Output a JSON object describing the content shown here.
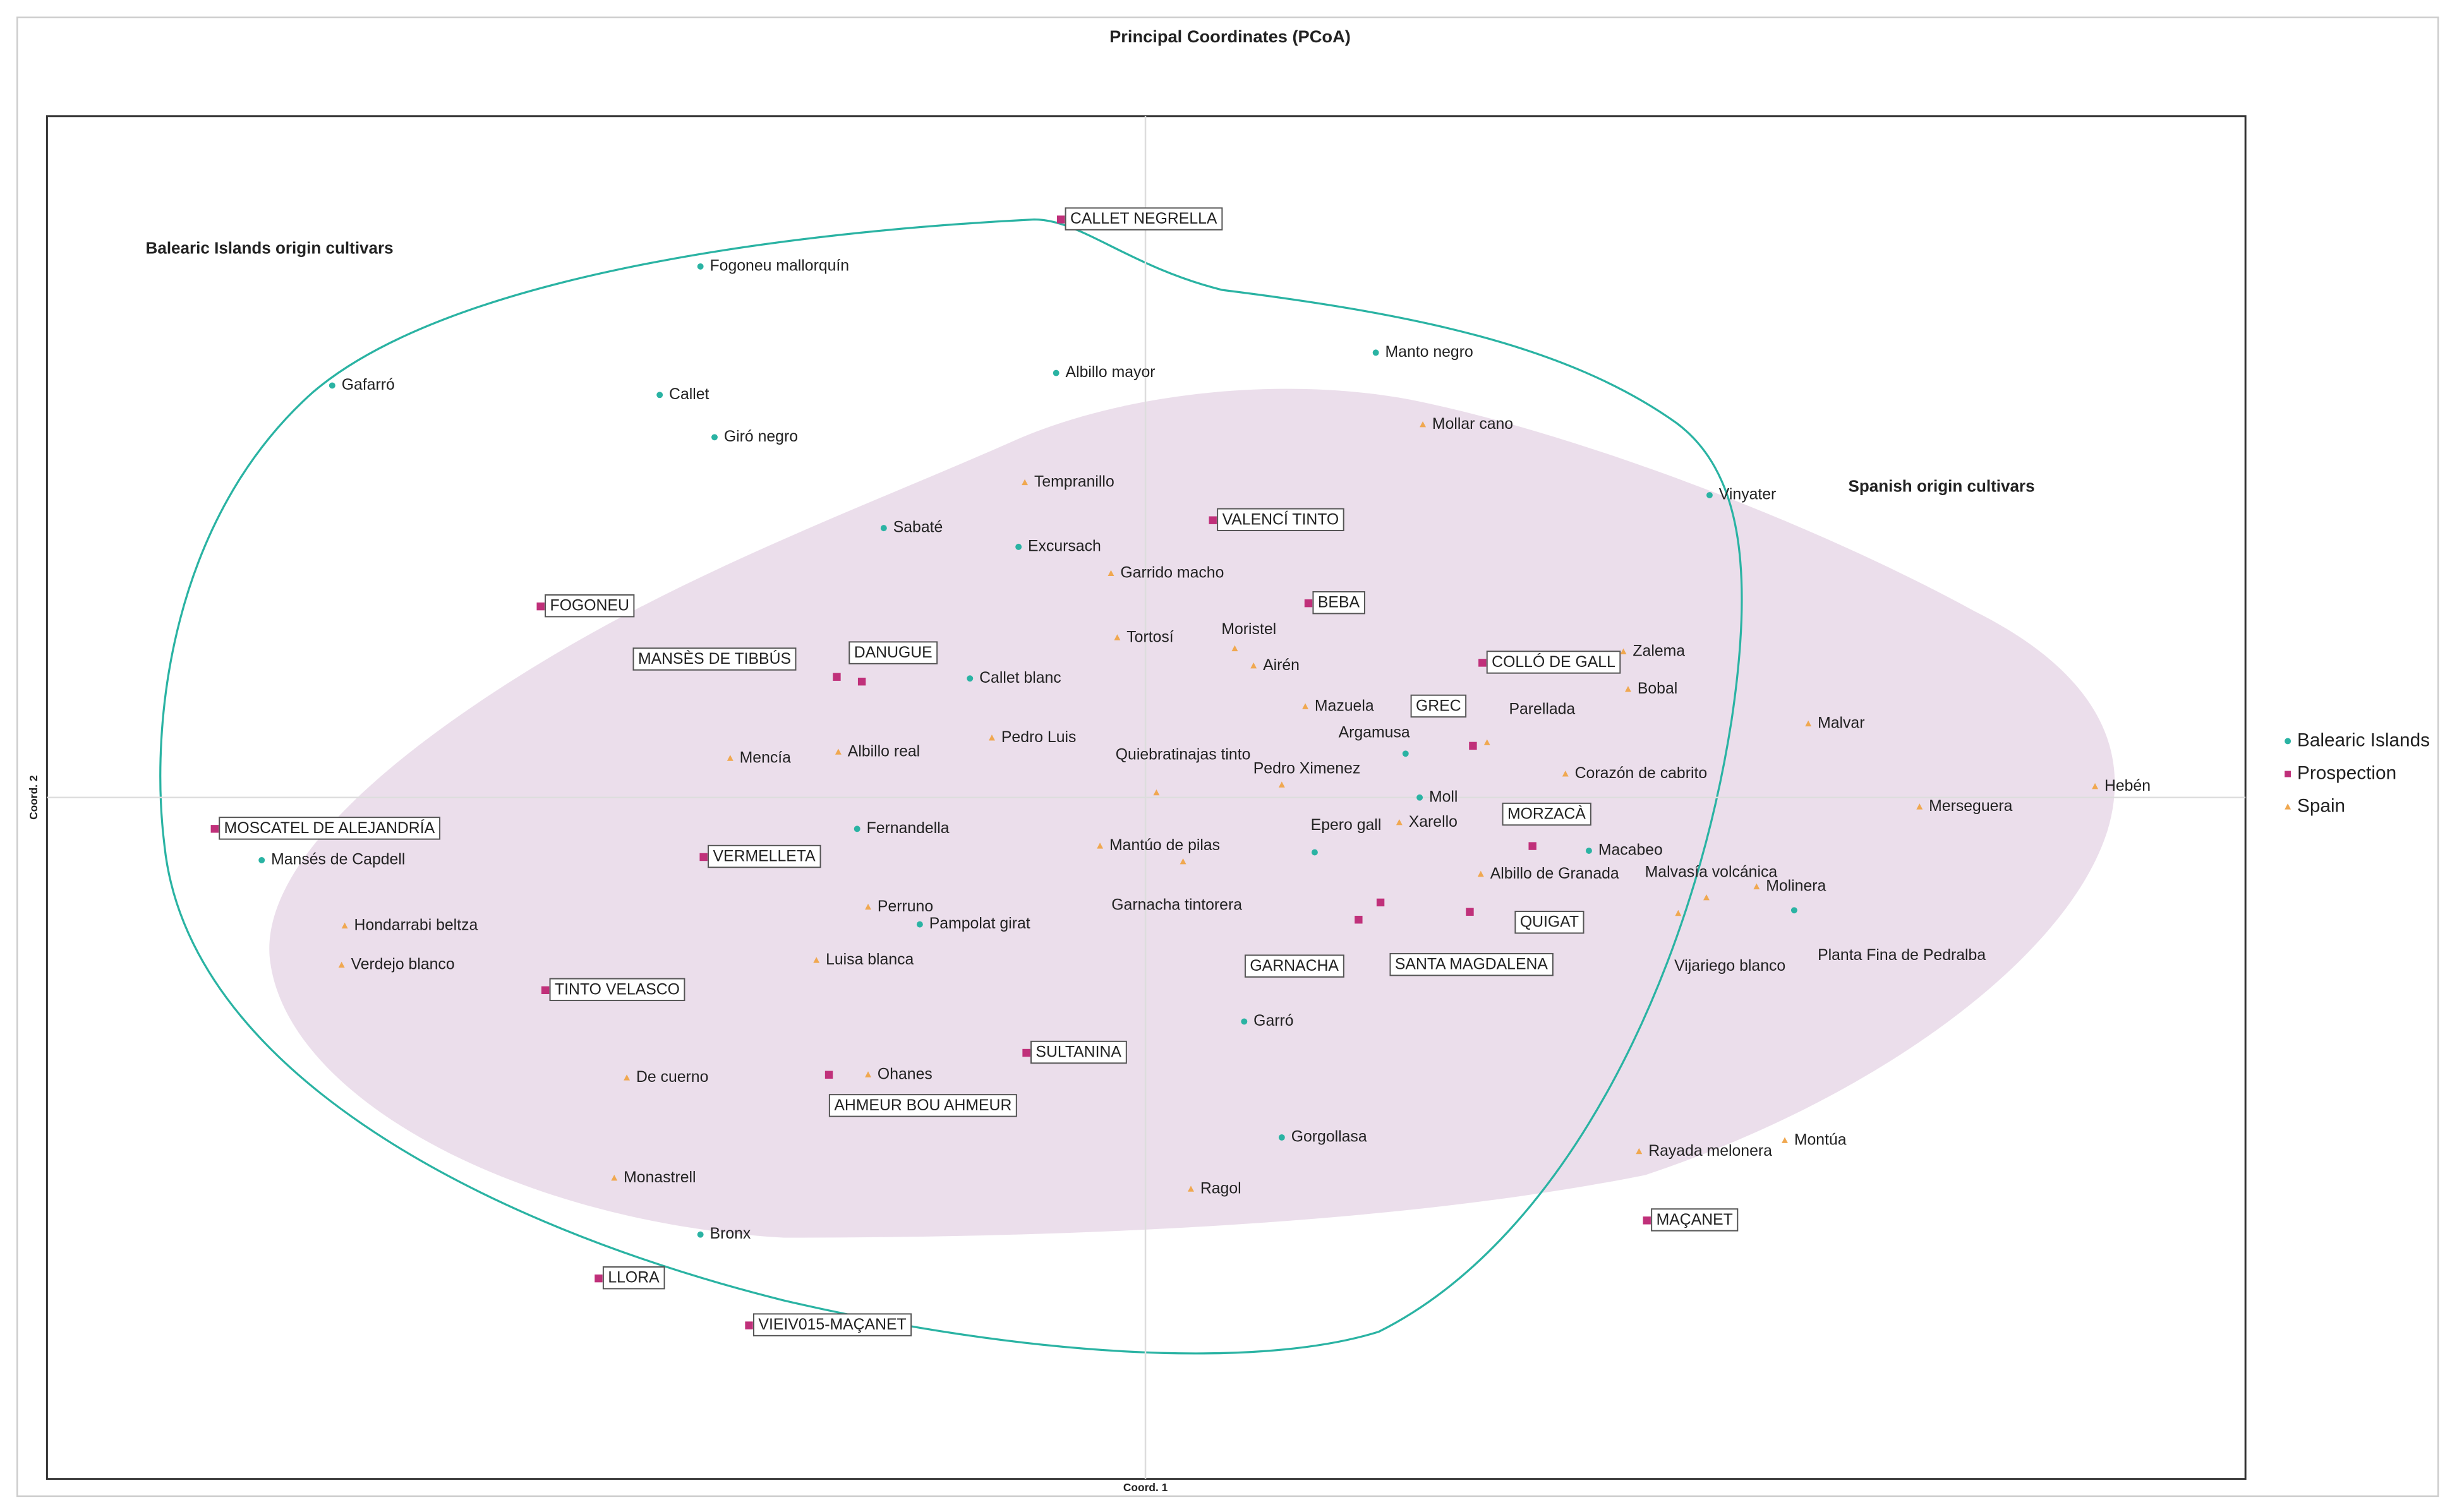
{
  "chart_data": {
    "type": "scatter",
    "title": "Principal Coordinates (PCoA)",
    "x_label": "Coord. 1",
    "y_label": "Coord. 2",
    "xlim": [
      -7.01,
      7.02
    ],
    "ylim": [
      -4.35,
      4.35
    ],
    "grid": false,
    "legend": "right",
    "annotations": [
      {
        "text": "Balearic Islands origin cultivars",
        "color": "#1fb29e"
      },
      {
        "text": "Spanish origin cultivars",
        "color": "#9b4f9e"
      }
    ],
    "series": [
      {
        "name": "Balearic Islands",
        "color": "#2ab3a3",
        "marker": "circle",
        "labels": [
          "Fogoneu mallorquín",
          "Gafarró",
          "Callet",
          "Giró negro",
          "Albillo mayor",
          "Manto negro",
          "Vinyater",
          "Sabaté",
          "Excursach",
          "Callet blanc",
          "Argamusa",
          "Moll",
          "Fernandella",
          "Mansés de Capdell",
          "Epero gall",
          "Macabeo",
          "Planta Fina de Pedralba",
          "Pampolat girat",
          "Garró",
          "Gorgollasa",
          "Bronx"
        ],
        "x": [
          -2.84,
          -5.19,
          -3.1,
          -2.75,
          -0.57,
          1.47,
          3.6,
          -1.67,
          -0.81,
          -1.12,
          1.66,
          1.75,
          -1.84,
          -5.64,
          1.08,
          2.83,
          4.14,
          -1.44,
          0.63,
          0.87,
          -2.84
        ],
        "y": [
          3.39,
          2.63,
          2.57,
          2.3,
          2.71,
          2.84,
          1.93,
          1.72,
          1.6,
          0.76,
          0.28,
          0.0,
          -0.2,
          -0.4,
          -0.35,
          -0.34,
          -0.72,
          -0.81,
          -1.43,
          -2.17,
          -2.79
        ]
      },
      {
        "name": "Prospection",
        "color": "#c0307a",
        "marker": "square",
        "labels": [
          "CALLET NEGRELLA",
          "VALENCÍ TINTO",
          "FOGONEU",
          "BEBA",
          "MANSÈS DE TIBBÚS",
          "DANUGUE",
          "COLLÓ DE GALL",
          "GREC",
          "MOSCATEL DE ALEJANDRÍA",
          "MORZACÀ",
          "VERMELLETA",
          "SANTA MAGDALENA",
          "GARNACHA",
          "QUIGAT",
          "TINTO VELASCO",
          "SULTANINA",
          "AHMEUR BOU AHMEUR",
          "MAÇANET",
          "LLORA",
          "VIEIV015-MAÇANET"
        ],
        "x": [
          -0.54,
          0.43,
          -3.86,
          1.04,
          -1.97,
          -1.81,
          2.15,
          2.09,
          -5.94,
          2.47,
          -2.82,
          1.5,
          1.36,
          2.07,
          -3.83,
          -0.76,
          -2.02,
          3.2,
          -3.49,
          -2.53
        ],
        "y": [
          3.69,
          1.77,
          1.22,
          1.24,
          0.77,
          0.74,
          0.86,
          0.33,
          -0.2,
          -0.31,
          -0.38,
          -0.67,
          -0.78,
          -0.73,
          -1.23,
          -1.63,
          -1.77,
          -2.7,
          -3.07,
          -3.37
        ]
      },
      {
        "name": "Spain",
        "color": "#f0a850",
        "marker": "triangle",
        "labels": [
          "Mollar cano",
          "Tempranillo",
          "Garrido macho",
          "Tortosí",
          "Moristel",
          "Airén",
          "Zalema",
          "Bobal",
          "Mazuela",
          "Parellada",
          "Malvar",
          "Pedro Luis",
          "Albillo real",
          "Mencía",
          "Quiebratinajas tinto",
          "Pedro Ximenez",
          "Corazón de cabrito",
          "Hebén",
          "Merseguera",
          "Xarello",
          "Mantúo de pilas",
          "Garnacha tintorera",
          "Albillo de Granada",
          "Malvasía volcánica",
          "Molinera",
          "Vijariego blanco",
          "Hondarrabi beltza",
          "Perruno",
          "Verdejo blanco",
          "Luisa blanca",
          "De cuerno",
          "Ohanes",
          "Monastrell",
          "Ragol",
          "Rayada melonera",
          "Montúa"
        ],
        "x": [
          1.77,
          -0.77,
          -0.22,
          -0.18,
          0.57,
          0.69,
          3.05,
          3.08,
          1.02,
          2.18,
          4.23,
          -0.98,
          -1.96,
          -2.65,
          0.07,
          0.87,
          2.68,
          6.06,
          4.94,
          1.62,
          -0.29,
          0.24,
          2.14,
          3.58,
          3.9,
          3.4,
          -5.11,
          -1.77,
          -5.13,
          -2.1,
          -3.31,
          -1.77,
          -3.39,
          0.29,
          3.15,
          4.08
        ],
        "y": [
          2.38,
          2.01,
          1.43,
          1.02,
          0.95,
          0.84,
          0.93,
          0.69,
          0.58,
          0.35,
          0.47,
          0.38,
          0.29,
          0.25,
          0.03,
          0.08,
          0.15,
          0.07,
          -0.06,
          -0.16,
          -0.31,
          -0.41,
          -0.49,
          -0.64,
          -0.57,
          -0.74,
          -0.82,
          -0.7,
          -1.07,
          -1.04,
          -1.79,
          -1.77,
          -2.43,
          -2.5,
          -2.26,
          -2.19
        ]
      }
    ]
  }
}
